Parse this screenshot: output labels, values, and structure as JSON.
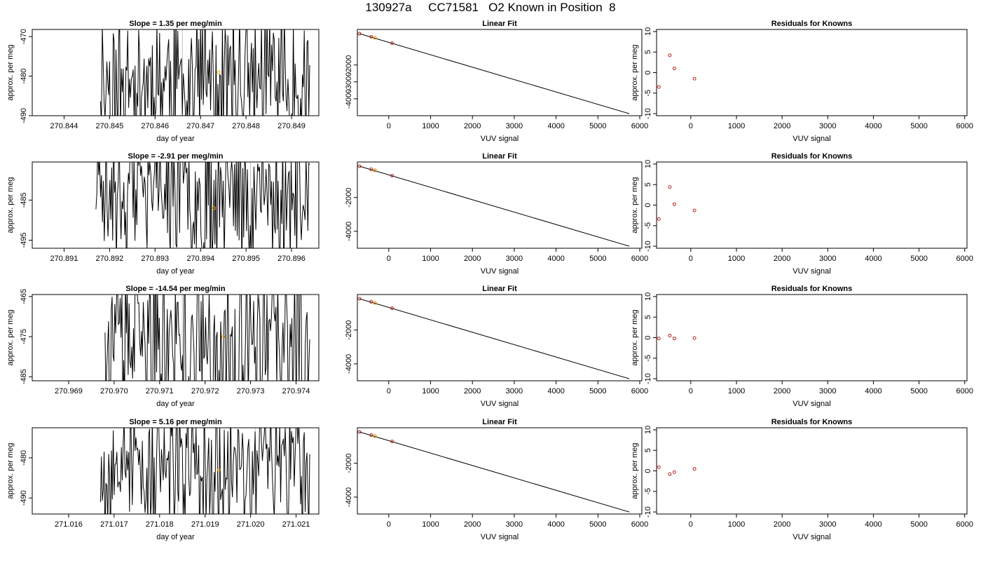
{
  "page": {
    "title": "130927a     CC71581   O2 Known in Position  8"
  },
  "chart_data": [
    {
      "type": "line",
      "row": 1,
      "col": 1,
      "title": "Slope =  1.35  per meg/min",
      "xlabel": "day of year",
      "ylabel": "approx. per meg",
      "xlim": [
        270.8433,
        270.8496
      ],
      "ylim": [
        -490,
        -468.2
      ],
      "xticks": [
        "270.844",
        "270.845",
        "270.846",
        "270.847",
        "270.848",
        "270.849"
      ],
      "xtick_values": [
        270.844,
        270.845,
        270.846,
        270.847,
        270.848,
        270.849
      ],
      "yticks": [
        "-490",
        "-480",
        "-470"
      ],
      "ytick_values": [
        -490,
        -480,
        -470
      ],
      "trace_start": 270.8448,
      "trace_end": 270.8494,
      "trace_center": -481,
      "trace_amplitude": 18,
      "trace_seed": 11,
      "vlines": [
        270.8466,
        270.8482
      ],
      "marker": {
        "x": 270.8474,
        "y": -479,
        "color": "#e69f00"
      },
      "line_color": "#000000",
      "vline_color": "#bebebe"
    },
    {
      "type": "scatter",
      "row": 1,
      "col": 2,
      "title": "Linear Fit",
      "xlabel": "VUV signal",
      "ylabel": "",
      "xlim": [
        -750,
        6050
      ],
      "ylim": [
        -5000,
        100
      ],
      "xticks": [
        "0",
        "1000",
        "2000",
        "3000",
        "4000",
        "5000",
        "6000"
      ],
      "xtick_values": [
        0,
        1000,
        2000,
        3000,
        4000,
        5000,
        6000
      ],
      "yticks": [
        "-2000",
        "-3000",
        "-4000"
      ],
      "ytick_values": [
        -2000,
        -3000,
        -4000
      ],
      "points": [
        {
          "x": -700,
          "y": -150
        },
        {
          "x": -420,
          "y": -330
        },
        {
          "x": -330,
          "y": -390
        },
        {
          "x": 80,
          "y": -710
        }
      ],
      "highlight": {
        "x": -330,
        "y": -390,
        "color": "#e69f00"
      },
      "fit_line": {
        "x": [
          -700,
          5750
        ],
        "y": [
          -150,
          -4880
        ]
      },
      "point_color": "#b22222",
      "line_color": "#000000"
    },
    {
      "type": "scatter",
      "row": 1,
      "col": 3,
      "title": "Residuals for Knowns",
      "xlabel": "VUV signal",
      "ylabel": "approx. per meg",
      "xlim": [
        -750,
        6050
      ],
      "ylim": [
        -10.5,
        10.5
      ],
      "xticks": [
        "0",
        "1000",
        "2000",
        "3000",
        "4000",
        "5000",
        "6000"
      ],
      "xtick_values": [
        0,
        1000,
        2000,
        3000,
        4000,
        5000,
        6000
      ],
      "yticks": [
        "-10",
        "-5",
        "0",
        "5",
        "10"
      ],
      "ytick_values": [
        -10,
        -5,
        0,
        5,
        10
      ],
      "points": [
        {
          "x": -700,
          "y": -3.5
        },
        {
          "x": -460,
          "y": 4.2
        },
        {
          "x": -360,
          "y": 1.0
        },
        {
          "x": 80,
          "y": -1.5
        }
      ],
      "point_color": "#b22222"
    },
    {
      "type": "line",
      "row": 2,
      "col": 1,
      "title": "Slope =  -2.91  per meg/min",
      "xlabel": "day of year",
      "ylabel": "approx. per meg",
      "xlim": [
        270.8903,
        270.8966
      ],
      "ylim": [
        -497,
        -475.5
      ],
      "xticks": [
        "270.891",
        "270.892",
        "270.893",
        "270.894",
        "270.895",
        "270.896"
      ],
      "xtick_values": [
        270.891,
        270.892,
        270.893,
        270.894,
        270.895,
        270.896
      ],
      "yticks": [
        "-485",
        "-495"
      ],
      "ytick_values": [
        -485,
        -495
      ],
      "trace_start": 270.8917,
      "trace_end": 270.8964,
      "trace_center": -484,
      "trace_amplitude": 18,
      "trace_seed": 23,
      "vlines": [
        270.8934,
        270.8951
      ],
      "marker": {
        "x": 270.8943,
        "y": -487,
        "color": "#e69f00"
      },
      "line_color": "#000000",
      "vline_color": "#bebebe"
    },
    {
      "type": "scatter",
      "row": 2,
      "col": 2,
      "title": "Linear Fit",
      "xlabel": "VUV signal",
      "ylabel": "",
      "xlim": [
        -750,
        6050
      ],
      "ylim": [
        -5000,
        100
      ],
      "xticks": [
        "0",
        "1000",
        "2000",
        "3000",
        "4000",
        "5000",
        "6000"
      ],
      "xtick_values": [
        0,
        1000,
        2000,
        3000,
        4000,
        5000,
        6000
      ],
      "yticks": [
        "-2000",
        "-4000"
      ],
      "ytick_values": [
        -2000,
        -4000
      ],
      "points": [
        {
          "x": -700,
          "y": -150
        },
        {
          "x": -420,
          "y": -330
        },
        {
          "x": -330,
          "y": -390
        },
        {
          "x": 80,
          "y": -710
        }
      ],
      "highlight": {
        "x": -330,
        "y": -390,
        "color": "#e69f00"
      },
      "fit_line": {
        "x": [
          -700,
          5750
        ],
        "y": [
          -150,
          -4880
        ]
      },
      "point_color": "#b22222",
      "line_color": "#000000"
    },
    {
      "type": "scatter",
      "row": 2,
      "col": 3,
      "title": "Residuals for Knowns",
      "xlabel": "VUV signal",
      "ylabel": "approx. per meg",
      "xlim": [
        -750,
        6050
      ],
      "ylim": [
        -10.5,
        10.5
      ],
      "xticks": [
        "0",
        "1000",
        "2000",
        "3000",
        "4000",
        "5000",
        "6000"
      ],
      "xtick_values": [
        0,
        1000,
        2000,
        3000,
        4000,
        5000,
        6000
      ],
      "yticks": [
        "-10",
        "-5",
        "0",
        "5",
        "10"
      ],
      "ytick_values": [
        -10,
        -5,
        0,
        5,
        10
      ],
      "points": [
        {
          "x": -700,
          "y": -3.4
        },
        {
          "x": -460,
          "y": 4.4
        },
        {
          "x": -360,
          "y": 0.2
        },
        {
          "x": 80,
          "y": -1.3
        }
      ],
      "point_color": "#b22222"
    },
    {
      "type": "line",
      "row": 3,
      "col": 1,
      "title": "Slope =  -14.54  per meg/min",
      "xlabel": "day of year",
      "ylabel": "approx. per meg",
      "xlim": [
        270.9682,
        270.9745
      ],
      "ylim": [
        -486,
        -464.5
      ],
      "xticks": [
        "270.969",
        "270.970",
        "270.971",
        "270.972",
        "270.973",
        "270.974"
      ],
      "xtick_values": [
        270.969,
        270.97,
        270.971,
        270.972,
        270.973,
        270.974
      ],
      "yticks": [
        "-465",
        "-475",
        "-485"
      ],
      "ytick_values": [
        -465,
        -475,
        -485
      ],
      "trace_start": 270.9698,
      "trace_end": 270.9743,
      "trace_center": -478,
      "trace_amplitude": 22,
      "trace_seed": 37,
      "vlines": [
        270.9715,
        270.9732
      ],
      "marker": {
        "x": 270.9724,
        "y": -475,
        "color": "#e69f00"
      },
      "line_color": "#000000",
      "vline_color": "#bebebe"
    },
    {
      "type": "scatter",
      "row": 3,
      "col": 2,
      "title": "Linear Fit",
      "xlabel": "VUV signal",
      "ylabel": "",
      "xlim": [
        -750,
        6050
      ],
      "ylim": [
        -5000,
        100
      ],
      "xticks": [
        "0",
        "1000",
        "2000",
        "3000",
        "4000",
        "5000",
        "6000"
      ],
      "xtick_values": [
        0,
        1000,
        2000,
        3000,
        4000,
        5000,
        6000
      ],
      "yticks": [
        "-2000",
        "-4000"
      ],
      "ytick_values": [
        -2000,
        -4000
      ],
      "points": [
        {
          "x": -700,
          "y": -150
        },
        {
          "x": -420,
          "y": -330
        },
        {
          "x": -330,
          "y": -390
        },
        {
          "x": 80,
          "y": -710
        }
      ],
      "highlight": {
        "x": -330,
        "y": -390,
        "color": "#e69f00"
      },
      "fit_line": {
        "x": [
          -700,
          5750
        ],
        "y": [
          -150,
          -4880
        ]
      },
      "point_color": "#b22222",
      "line_color": "#000000"
    },
    {
      "type": "scatter",
      "row": 3,
      "col": 3,
      "title": "Residuals for Knowns",
      "xlabel": "VUV signal",
      "ylabel": "approx. per meg",
      "xlim": [
        -750,
        6050
      ],
      "ylim": [
        -10.5,
        10.5
      ],
      "xticks": [
        "0",
        "1000",
        "2000",
        "3000",
        "4000",
        "5000",
        "6000"
      ],
      "xtick_values": [
        0,
        1000,
        2000,
        3000,
        4000,
        5000,
        6000
      ],
      "yticks": [
        "-10",
        "-5",
        "0",
        "5",
        "10"
      ],
      "ytick_values": [
        -10,
        -5,
        0,
        5,
        10
      ],
      "points": [
        {
          "x": -700,
          "y": -0.2
        },
        {
          "x": -460,
          "y": 0.5
        },
        {
          "x": -360,
          "y": -0.2
        },
        {
          "x": 80,
          "y": -0.1
        }
      ],
      "point_color": "#b22222"
    },
    {
      "type": "line",
      "row": 4,
      "col": 1,
      "title": "Slope =  5.16  per meg/min",
      "xlabel": "day of year",
      "ylabel": "approx. per meg",
      "xlim": [
        271.0152,
        271.0215
      ],
      "ylim": [
        -494,
        -472.5
      ],
      "xticks": [
        "271.016",
        "271.017",
        "271.018",
        "271.019",
        "271.020",
        "271.021"
      ],
      "xtick_values": [
        271.016,
        271.017,
        271.018,
        271.019,
        271.02,
        271.021
      ],
      "yticks": [
        "-480",
        "-490"
      ],
      "ytick_values": [
        -480,
        -490
      ],
      "trace_start": 271.0167,
      "trace_end": 271.0213,
      "trace_center": -482,
      "trace_amplitude": 16,
      "trace_seed": 53,
      "vlines": [
        271.0184,
        271.0201
      ],
      "marker": {
        "x": 271.0193,
        "y": -483,
        "color": "#e69f00"
      },
      "line_color": "#000000",
      "vline_color": "#bebebe"
    },
    {
      "type": "scatter",
      "row": 4,
      "col": 2,
      "title": "Linear Fit",
      "xlabel": "VUV signal",
      "ylabel": "",
      "xlim": [
        -750,
        6050
      ],
      "ylim": [
        -5000,
        100
      ],
      "xticks": [
        "0",
        "1000",
        "2000",
        "3000",
        "4000",
        "5000",
        "6000"
      ],
      "xtick_values": [
        0,
        1000,
        2000,
        3000,
        4000,
        5000,
        6000
      ],
      "yticks": [
        "-2000",
        "-4000"
      ],
      "ytick_values": [
        -2000,
        -4000
      ],
      "points": [
        {
          "x": -700,
          "y": -150
        },
        {
          "x": -420,
          "y": -330
        },
        {
          "x": -330,
          "y": -390
        },
        {
          "x": 80,
          "y": -710
        }
      ],
      "highlight": {
        "x": -330,
        "y": -390,
        "color": "#e69f00"
      },
      "fit_line": {
        "x": [
          -700,
          5750
        ],
        "y": [
          -150,
          -4880
        ]
      },
      "point_color": "#b22222",
      "line_color": "#000000"
    },
    {
      "type": "scatter",
      "row": 4,
      "col": 3,
      "title": "Residuals for Knowns",
      "xlabel": "VUV signal",
      "ylabel": "approx. per meg",
      "xlim": [
        -750,
        6050
      ],
      "ylim": [
        -10.5,
        10.5
      ],
      "xticks": [
        "0",
        "1000",
        "2000",
        "3000",
        "4000",
        "5000",
        "6000"
      ],
      "xtick_values": [
        0,
        1000,
        2000,
        3000,
        4000,
        5000,
        6000
      ],
      "yticks": [
        "-10",
        "-5",
        "0",
        "5",
        "10"
      ],
      "ytick_values": [
        -10,
        -5,
        0,
        5,
        10
      ],
      "points": [
        {
          "x": -700,
          "y": 0.9
        },
        {
          "x": -460,
          "y": -0.8
        },
        {
          "x": -360,
          "y": -0.3
        },
        {
          "x": 80,
          "y": 0.5
        }
      ],
      "point_color": "#b22222"
    }
  ]
}
